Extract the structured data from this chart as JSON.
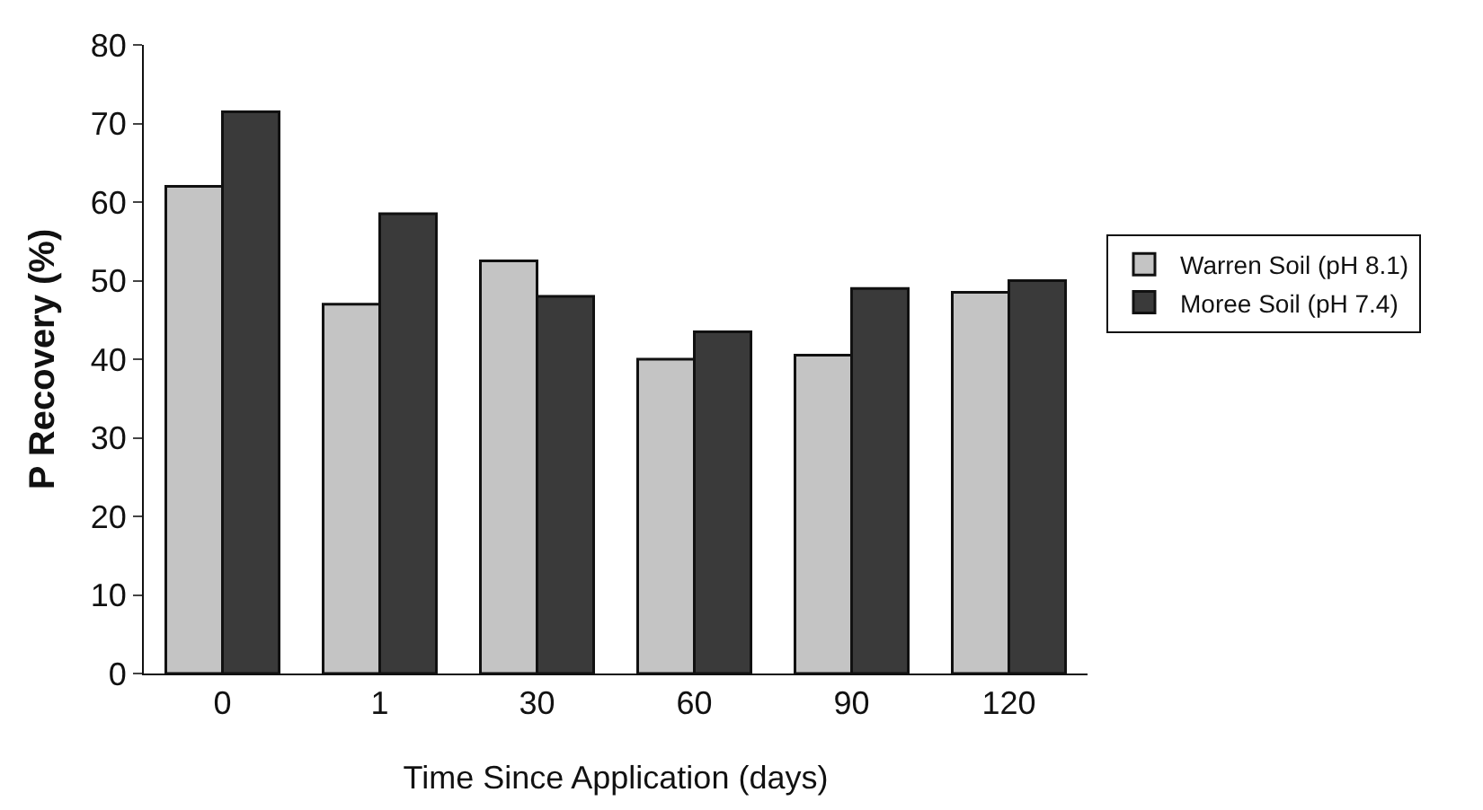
{
  "chart_data": {
    "type": "bar",
    "xlabel": "Time Since Application (days)",
    "ylabel": "P Recovery (%)",
    "categories": [
      "0",
      "1",
      "30",
      "60",
      "90",
      "120"
    ],
    "series": [
      {
        "name": "Warren Soil (pH 8.1)",
        "color": "#c4c4c4",
        "values": [
          62,
          47,
          52.5,
          40,
          40.5,
          48.5
        ]
      },
      {
        "name": "Moree Soil (pH 7.4)",
        "color": "#3a3a3a",
        "values": [
          71.5,
          58.5,
          48,
          43.5,
          49,
          50
        ]
      }
    ],
    "ylim": [
      0,
      80
    ],
    "yticks": [
      0,
      10,
      20,
      30,
      40,
      50,
      60,
      70,
      80
    ],
    "grid": false,
    "legend": "right"
  }
}
